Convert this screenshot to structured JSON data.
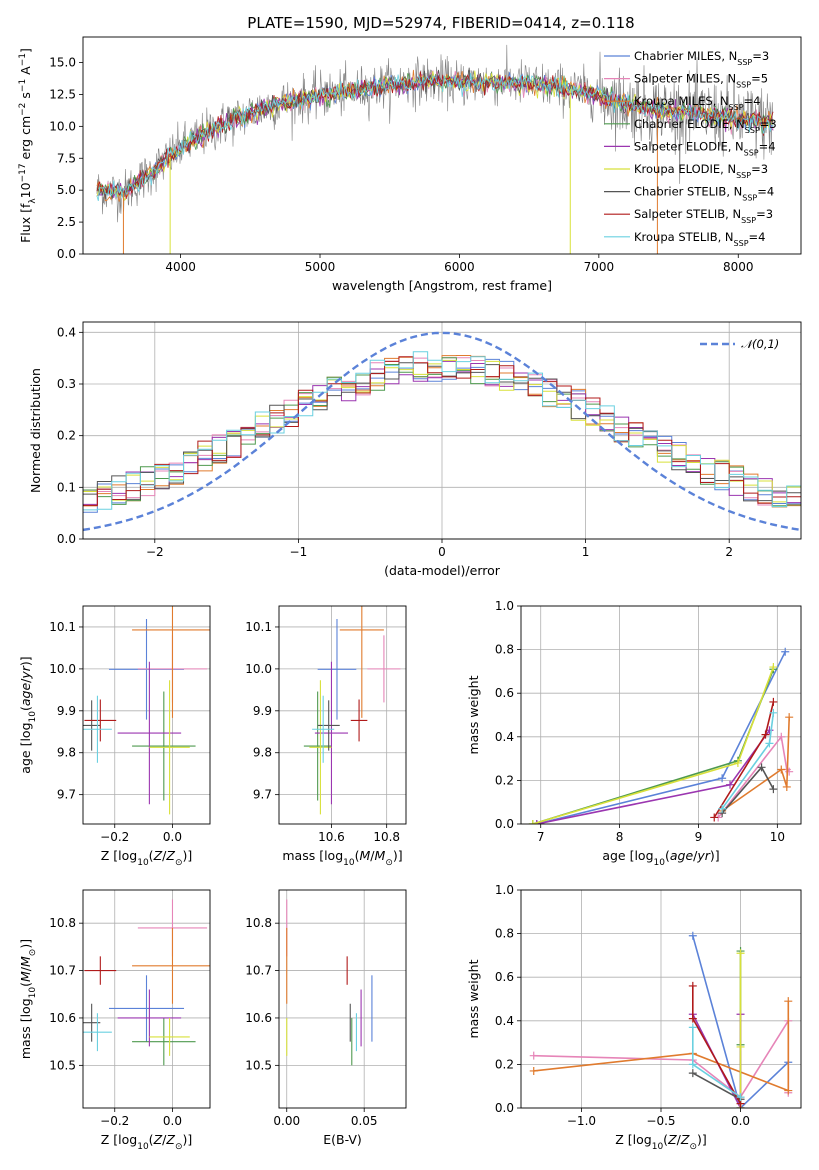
{
  "title": "PLATE=1590, MJD=52974, FIBERID=0414, z=0.118",
  "colors": {
    "Chabrier MILES": "#5b82d8",
    "Salpeter MILES": "#e685b8",
    "Kroupa MILES": "#e07b2e",
    "Chabrier ELODIE": "#4f9a4f",
    "Salpeter ELODIE": "#9b36b0",
    "Kroupa ELODIE": "#d8e03a",
    "Chabrier STELIB": "#555555",
    "Salpeter STELIB": "#b01a1a",
    "Kroupa STELIB": "#6ad0e0"
  },
  "chart_data": [
    {
      "type": "line",
      "panel": "spectrum",
      "xlabel": "wavelength [Angstrom, rest frame]",
      "ylabel": "Flux [f_λ 10^-17 erg cm^-2 s^-1 A^-1]",
      "xlim": [
        3300,
        8450
      ],
      "ylim": [
        0,
        17
      ],
      "xticks": [
        4000,
        5000,
        6000,
        7000,
        8000
      ],
      "yticks": [
        0.0,
        2.5,
        5.0,
        7.5,
        10.0,
        12.5,
        15.0
      ],
      "grid": false,
      "legend_position": "right",
      "legend": [
        {
          "name": "Chabrier MILES",
          "nssp": "3"
        },
        {
          "name": "Salpeter MILES",
          "nssp": "5"
        },
        {
          "name": "Kroupa MILES",
          "nssp": "4"
        },
        {
          "name": "Chabrier ELODIE",
          "nssp": "3"
        },
        {
          "name": "Salpeter ELODIE",
          "nssp": "4"
        },
        {
          "name": "Kroupa ELODIE",
          "nssp": "3"
        },
        {
          "name": "Chabrier STELIB",
          "nssp": "4"
        },
        {
          "name": "Salpeter STELIB",
          "nssp": "3"
        },
        {
          "name": "Kroupa STELIB",
          "nssp": "4"
        }
      ],
      "continuum": {
        "x": [
          3400,
          3600,
          3800,
          4000,
          4200,
          4400,
          4600,
          4800,
          5000,
          5200,
          5400,
          5600,
          5800,
          6000,
          6200,
          6400,
          6600,
          6800,
          7000,
          7200,
          7400,
          7600,
          7800,
          8000,
          8200
        ],
        "y": [
          5.0,
          4.8,
          6.5,
          8.3,
          9.6,
          10.6,
          11.5,
          12.0,
          12.4,
          12.7,
          13.1,
          13.4,
          13.6,
          13.4,
          13.5,
          13.4,
          13.2,
          12.9,
          12.5,
          11.7,
          11.3,
          11.1,
          10.9,
          10.6,
          10.3
        ]
      }
    },
    {
      "type": "line",
      "panel": "residuals",
      "xlabel": "(data-model)/error",
      "ylabel": "Normed distribution",
      "xlim": [
        -2.5,
        2.5
      ],
      "ylim": [
        0,
        0.42
      ],
      "xticks": [
        -2,
        -1,
        0,
        1,
        2
      ],
      "yticks": [
        0.0,
        0.1,
        0.2,
        0.3,
        0.4
      ],
      "grid": true,
      "legend_position": "top-right",
      "gaussian_label": "𝒩(0,1)",
      "bins": {
        "start": -2.5,
        "width": 0.1
      }
    },
    {
      "type": "scatter",
      "panel": "age-vs-Z",
      "xlabel": "Z [log10(Z/Z⊙)]",
      "ylabel": "age  [log10(age/yr)]",
      "xlim": [
        -0.31,
        0.13
      ],
      "ylim": [
        9.63,
        10.15
      ],
      "xticks": [
        -0.2,
        0.0
      ],
      "yticks": [
        9.7,
        9.8,
        9.9,
        10.0,
        10.1
      ],
      "grid": true,
      "points": [
        {
          "series": "Chabrier MILES",
          "x": -0.09,
          "y": 9.999,
          "ex": 0.13,
          "ey": 0.12
        },
        {
          "series": "Salpeter MILES",
          "x": 0.0,
          "y": 10.0,
          "ex": 0.12,
          "ey": 0.08
        },
        {
          "series": "Kroupa MILES",
          "x": 0.0,
          "y": 10.093,
          "ex": 0.14,
          "ey": 0.21
        },
        {
          "series": "Chabrier ELODIE",
          "x": -0.03,
          "y": 9.816,
          "ex": 0.11,
          "ey": 0.13
        },
        {
          "series": "Salpeter ELODIE",
          "x": -0.08,
          "y": 9.847,
          "ex": 0.11,
          "ey": 0.17
        },
        {
          "series": "Kroupa ELODIE",
          "x": -0.01,
          "y": 9.813,
          "ex": 0.07,
          "ey": 0.16
        },
        {
          "series": "Chabrier STELIB",
          "x": -0.28,
          "y": 9.865,
          "ex": 0.03,
          "ey": 0.06
        },
        {
          "series": "Salpeter STELIB",
          "x": -0.25,
          "y": 9.877,
          "ex": 0.055,
          "ey": 0.05
        },
        {
          "series": "Kroupa STELIB",
          "x": -0.26,
          "y": 9.856,
          "ex": 0.05,
          "ey": 0.08
        }
      ]
    },
    {
      "type": "scatter",
      "panel": "age-vs-mass",
      "xlabel": "mass [log10(M/M⊙)]",
      "ylabel": "",
      "xlim": [
        10.41,
        10.87
      ],
      "ylim": [
        9.63,
        10.15
      ],
      "xticks": [
        10.6,
        10.8
      ],
      "yticks": [
        9.7,
        9.8,
        9.9,
        10.0,
        10.1
      ],
      "grid": true,
      "points": [
        {
          "series": "Chabrier MILES",
          "x": 10.62,
          "y": 9.999,
          "ex": 0.07,
          "ey": 0.12
        },
        {
          "series": "Salpeter MILES",
          "x": 10.79,
          "y": 10.0,
          "ex": 0.06,
          "ey": 0.08
        },
        {
          "series": "Kroupa MILES",
          "x": 10.71,
          "y": 10.093,
          "ex": 0.08,
          "ey": 0.21
        },
        {
          "series": "Chabrier ELODIE",
          "x": 10.55,
          "y": 9.816,
          "ex": 0.05,
          "ey": 0.13
        },
        {
          "series": "Salpeter ELODIE",
          "x": 10.6,
          "y": 9.847,
          "ex": 0.06,
          "ey": 0.17
        },
        {
          "series": "Kroupa ELODIE",
          "x": 10.56,
          "y": 9.813,
          "ex": 0.04,
          "ey": 0.16
        },
        {
          "series": "Chabrier STELIB",
          "x": 10.59,
          "y": 9.865,
          "ex": 0.04,
          "ey": 0.06
        },
        {
          "series": "Salpeter STELIB",
          "x": 10.7,
          "y": 9.877,
          "ex": 0.03,
          "ey": 0.05
        },
        {
          "series": "Kroupa STELIB",
          "x": 10.57,
          "y": 9.856,
          "ex": 0.04,
          "ey": 0.08
        }
      ]
    },
    {
      "type": "line",
      "panel": "weight-vs-age",
      "xlabel": "age  [log10(age/yr)]",
      "ylabel": "mass weight",
      "xlim": [
        6.75,
        10.3
      ],
      "ylim": [
        0,
        1.0
      ],
      "xticks": [
        7,
        8,
        9,
        10
      ],
      "yticks": [
        0.0,
        0.2,
        0.4,
        0.6,
        0.8,
        1.0
      ],
      "grid": true,
      "series": [
        {
          "name": "Chabrier MILES",
          "x": [
            6.95,
            9.3,
            10.1
          ],
          "y": [
            0.0,
            0.21,
            0.79
          ]
        },
        {
          "name": "Salpeter MILES",
          "x": [
            9.25,
            10.05,
            10.12,
            10.15
          ],
          "y": [
            0.03,
            0.4,
            0.25,
            0.24
          ]
        },
        {
          "name": "Kroupa MILES",
          "x": [
            9.3,
            10.05,
            10.12,
            10.15
          ],
          "y": [
            0.06,
            0.25,
            0.17,
            0.49
          ]
        },
        {
          "name": "Chabrier ELODIE",
          "x": [
            6.9,
            9.5,
            9.95
          ],
          "y": [
            0.0,
            0.29,
            0.71
          ]
        },
        {
          "name": "Salpeter ELODIE",
          "x": [
            6.95,
            9.4,
            9.9
          ],
          "y": [
            0.0,
            0.18,
            0.43
          ]
        },
        {
          "name": "Kroupa ELODIE",
          "x": [
            6.9,
            9.5,
            9.95
          ],
          "y": [
            0.0,
            0.28,
            0.72
          ]
        },
        {
          "name": "Chabrier STELIB",
          "x": [
            9.3,
            9.8,
            9.95
          ],
          "y": [
            0.05,
            0.26,
            0.16
          ]
        },
        {
          "name": "Salpeter STELIB",
          "x": [
            9.2,
            9.85,
            9.95
          ],
          "y": [
            0.03,
            0.41,
            0.56
          ]
        },
        {
          "name": "Kroupa STELIB",
          "x": [
            9.3,
            9.9,
            9.95
          ],
          "y": [
            0.07,
            0.37,
            0.51
          ]
        }
      ]
    },
    {
      "type": "scatter",
      "panel": "mass-vs-Z",
      "xlabel": "Z [log10(Z/Z⊙)]",
      "ylabel": "mass [log10(M/M⊙)]",
      "xlim": [
        -0.31,
        0.13
      ],
      "ylim": [
        10.41,
        10.87
      ],
      "xticks": [
        -0.2,
        0.0
      ],
      "yticks": [
        10.5,
        10.6,
        10.7,
        10.8
      ],
      "grid": true,
      "points": [
        {
          "series": "Chabrier MILES",
          "x": -0.09,
          "y": 10.62,
          "ex": 0.13,
          "ey": 0.07
        },
        {
          "series": "Salpeter MILES",
          "x": 0.0,
          "y": 10.79,
          "ex": 0.12,
          "ey": 0.06
        },
        {
          "series": "Kroupa MILES",
          "x": 0.0,
          "y": 10.71,
          "ex": 0.14,
          "ey": 0.08
        },
        {
          "series": "Chabrier ELODIE",
          "x": -0.03,
          "y": 10.55,
          "ex": 0.11,
          "ey": 0.05
        },
        {
          "series": "Salpeter ELODIE",
          "x": -0.08,
          "y": 10.6,
          "ex": 0.11,
          "ey": 0.06
        },
        {
          "series": "Kroupa ELODIE",
          "x": -0.01,
          "y": 10.56,
          "ex": 0.07,
          "ey": 0.04
        },
        {
          "series": "Chabrier STELIB",
          "x": -0.28,
          "y": 10.59,
          "ex": 0.03,
          "ey": 0.04
        },
        {
          "series": "Salpeter STELIB",
          "x": -0.25,
          "y": 10.7,
          "ex": 0.055,
          "ey": 0.03
        },
        {
          "series": "Kroupa STELIB",
          "x": -0.26,
          "y": 10.57,
          "ex": 0.05,
          "ey": 0.04
        }
      ]
    },
    {
      "type": "scatter",
      "panel": "mass-vs-EBV",
      "xlabel": "E(B-V)",
      "ylabel": "",
      "xlim": [
        -0.005,
        0.077
      ],
      "ylim": [
        10.41,
        10.87
      ],
      "xticks": [
        0.0,
        0.05
      ],
      "yticks": [
        10.5,
        10.6,
        10.7,
        10.8
      ],
      "grid": true,
      "points": [
        {
          "series": "Chabrier MILES",
          "x": 0.055,
          "y": 10.62,
          "ex": 0,
          "ey": 0.07
        },
        {
          "series": "Salpeter MILES",
          "x": 0.0,
          "y": 10.79,
          "ex": 0,
          "ey": 0.06
        },
        {
          "series": "Kroupa MILES",
          "x": 0.0,
          "y": 10.71,
          "ex": 0,
          "ey": 0.08
        },
        {
          "series": "Chabrier ELODIE",
          "x": 0.042,
          "y": 10.55,
          "ex": 0,
          "ey": 0.05
        },
        {
          "series": "Salpeter ELODIE",
          "x": 0.048,
          "y": 10.6,
          "ex": 0,
          "ey": 0.06
        },
        {
          "series": "Kroupa ELODIE",
          "x": 0.0,
          "y": 10.56,
          "ex": 0,
          "ey": 0.04
        },
        {
          "series": "Chabrier STELIB",
          "x": 0.041,
          "y": 10.59,
          "ex": 0,
          "ey": 0.04
        },
        {
          "series": "Salpeter STELIB",
          "x": 0.039,
          "y": 10.7,
          "ex": 0,
          "ey": 0.03
        },
        {
          "series": "Kroupa STELIB",
          "x": 0.045,
          "y": 10.57,
          "ex": 0,
          "ey": 0.04
        }
      ]
    },
    {
      "type": "line",
      "panel": "weight-vs-Z",
      "xlabel": "Z [log10(Z/Z⊙)]",
      "ylabel": "mass weight",
      "xlim": [
        -1.38,
        0.38
      ],
      "ylim": [
        0,
        1.0
      ],
      "xticks": [
        -1.0,
        -0.5,
        0.0
      ],
      "yticks": [
        0.0,
        0.2,
        0.4,
        0.6,
        0.8,
        1.0
      ],
      "grid": true,
      "series": [
        {
          "name": "Chabrier MILES",
          "x": [
            -0.3,
            0.0,
            0.3
          ],
          "y": [
            0.79,
            0.0,
            0.21
          ]
        },
        {
          "name": "Salpeter MILES",
          "x": [
            -1.3,
            -0.3,
            0.0,
            0.3,
            0.3
          ],
          "y": [
            0.24,
            0.22,
            0.05,
            0.4,
            0.07
          ]
        },
        {
          "name": "Kroupa MILES",
          "x": [
            -1.3,
            -0.3,
            0.3,
            0.3
          ],
          "y": [
            0.17,
            0.25,
            0.08,
            0.49
          ]
        },
        {
          "name": "Chabrier ELODIE",
          "x": [
            0.0,
            0.0,
            0.0
          ],
          "y": [
            0.72,
            0.29,
            0.0
          ]
        },
        {
          "name": "Salpeter ELODIE",
          "x": [
            -0.3,
            0.0,
            0.0
          ],
          "y": [
            0.43,
            0.0,
            0.43
          ]
        },
        {
          "name": "Kroupa ELODIE",
          "x": [
            0.0,
            0.0,
            0.0
          ],
          "y": [
            0.71,
            0.28,
            0.0
          ]
        },
        {
          "name": "Chabrier STELIB",
          "x": [
            -0.3,
            0.0
          ],
          "y": [
            0.16,
            0.04
          ]
        },
        {
          "name": "Salpeter STELIB",
          "x": [
            -0.3,
            -0.3,
            0.0
          ],
          "y": [
            0.56,
            0.41,
            0.02
          ]
        },
        {
          "name": "Kroupa STELIB",
          "x": [
            -0.3,
            -0.3,
            0.0
          ],
          "y": [
            0.37,
            0.2,
            0.05
          ]
        }
      ]
    }
  ]
}
